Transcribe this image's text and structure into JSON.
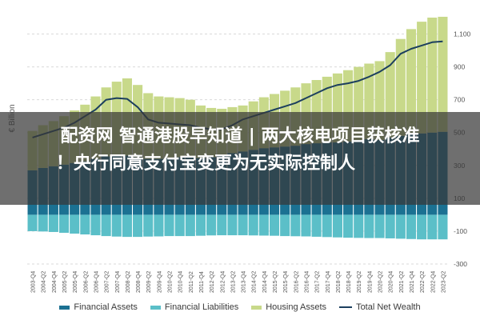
{
  "chart_data": {
    "type": "area",
    "ylabel": "€ Billion",
    "ylim": [
      -300,
      1200
    ],
    "y_ticks": [
      -300,
      -100,
      100,
      300,
      500,
      700,
      900,
      1100
    ],
    "y_tick_labels": [
      "-300",
      "-100",
      "100",
      "300",
      "500",
      "700",
      "900",
      "1,100"
    ],
    "grid": true,
    "legend_position": "bottom",
    "x": [
      "2003-Q4",
      "2004-Q2",
      "2004-Q4",
      "2005-Q2",
      "2005-Q4",
      "2006-Q2",
      "2006-Q4",
      "2007-Q2",
      "2007-Q4",
      "2008-Q2",
      "2008-Q4",
      "2009-Q2",
      "2009-Q4",
      "2010-Q2",
      "2010-Q4",
      "2011-Q2",
      "2011-Q4",
      "2012-Q2",
      "2012-Q4",
      "2013-Q2",
      "2013-Q4",
      "2014-Q2",
      "2014-Q4",
      "2015-Q2",
      "2015-Q4",
      "2016-Q2",
      "2016-Q4",
      "2017-Q2",
      "2017-Q4",
      "2018-Q2",
      "2018-Q4",
      "2019-Q2",
      "2019-Q4",
      "2020-Q2",
      "2020-Q4",
      "2021-Q2",
      "2021-Q4",
      "2022-Q2",
      "2022-Q4",
      "2023-Q2"
    ],
    "series": [
      {
        "name": "Financial Assets",
        "kind": "stacked-area",
        "color": "#1b7192",
        "values": [
          270,
          285,
          295,
          305,
          315,
          325,
          340,
          355,
          360,
          360,
          350,
          340,
          340,
          345,
          350,
          355,
          345,
          350,
          360,
          375,
          385,
          395,
          405,
          410,
          415,
          420,
          430,
          435,
          440,
          440,
          445,
          455,
          460,
          455,
          470,
          480,
          490,
          495,
          500,
          505
        ]
      },
      {
        "name": "Housing Assets",
        "kind": "stacked-area",
        "color": "#c8d98a",
        "values": [
          240,
          260,
          275,
          295,
          320,
          345,
          380,
          420,
          450,
          470,
          440,
          400,
          380,
          370,
          360,
          345,
          320,
          300,
          285,
          280,
          280,
          295,
          310,
          325,
          340,
          355,
          370,
          385,
          400,
          420,
          435,
          445,
          460,
          480,
          520,
          590,
          640,
          680,
          700,
          700
        ]
      },
      {
        "name": "Financial Liabilities",
        "kind": "negative-area",
        "color": "#5bbfc8",
        "values": [
          -100,
          -102,
          -105,
          -110,
          -115,
          -120,
          -125,
          -130,
          -133,
          -135,
          -135,
          -133,
          -132,
          -130,
          -130,
          -130,
          -128,
          -126,
          -125,
          -125,
          -125,
          -126,
          -127,
          -128,
          -130,
          -131,
          -132,
          -134,
          -136,
          -138,
          -140,
          -141,
          -142,
          -142,
          -144,
          -146,
          -148,
          -150,
          -150,
          -150
        ]
      },
      {
        "name": "Total Net Wealth",
        "kind": "line",
        "color": "#1c3f5e",
        "values": [
          470,
          490,
          510,
          530,
          560,
          600,
          640,
          700,
          710,
          705,
          655,
          580,
          560,
          555,
          550,
          545,
          530,
          520,
          520,
          545,
          580,
          600,
          620,
          640,
          660,
          680,
          710,
          740,
          770,
          790,
          800,
          815,
          840,
          870,
          910,
          980,
          1010,
          1030,
          1050,
          1055
        ]
      }
    ]
  },
  "legend": {
    "financial_assets": "Financial Assets",
    "financial_liabilities": "Financial Liabilities",
    "housing_assets": "Housing Assets",
    "total_net_wealth": "Total Net Wealth"
  },
  "overlay": {
    "headline_line1": "配资网 智通港股早知道 | 两大核电项目获核准",
    "headline_line2": "！央行同意支付宝变更为无实际控制人"
  },
  "colors": {
    "financial_assets": "#1b7192",
    "financial_liabilities": "#5bbfc8",
    "housing_assets": "#c8d98a",
    "total_net_wealth": "#1c3f5e",
    "overlay": "#373737"
  }
}
